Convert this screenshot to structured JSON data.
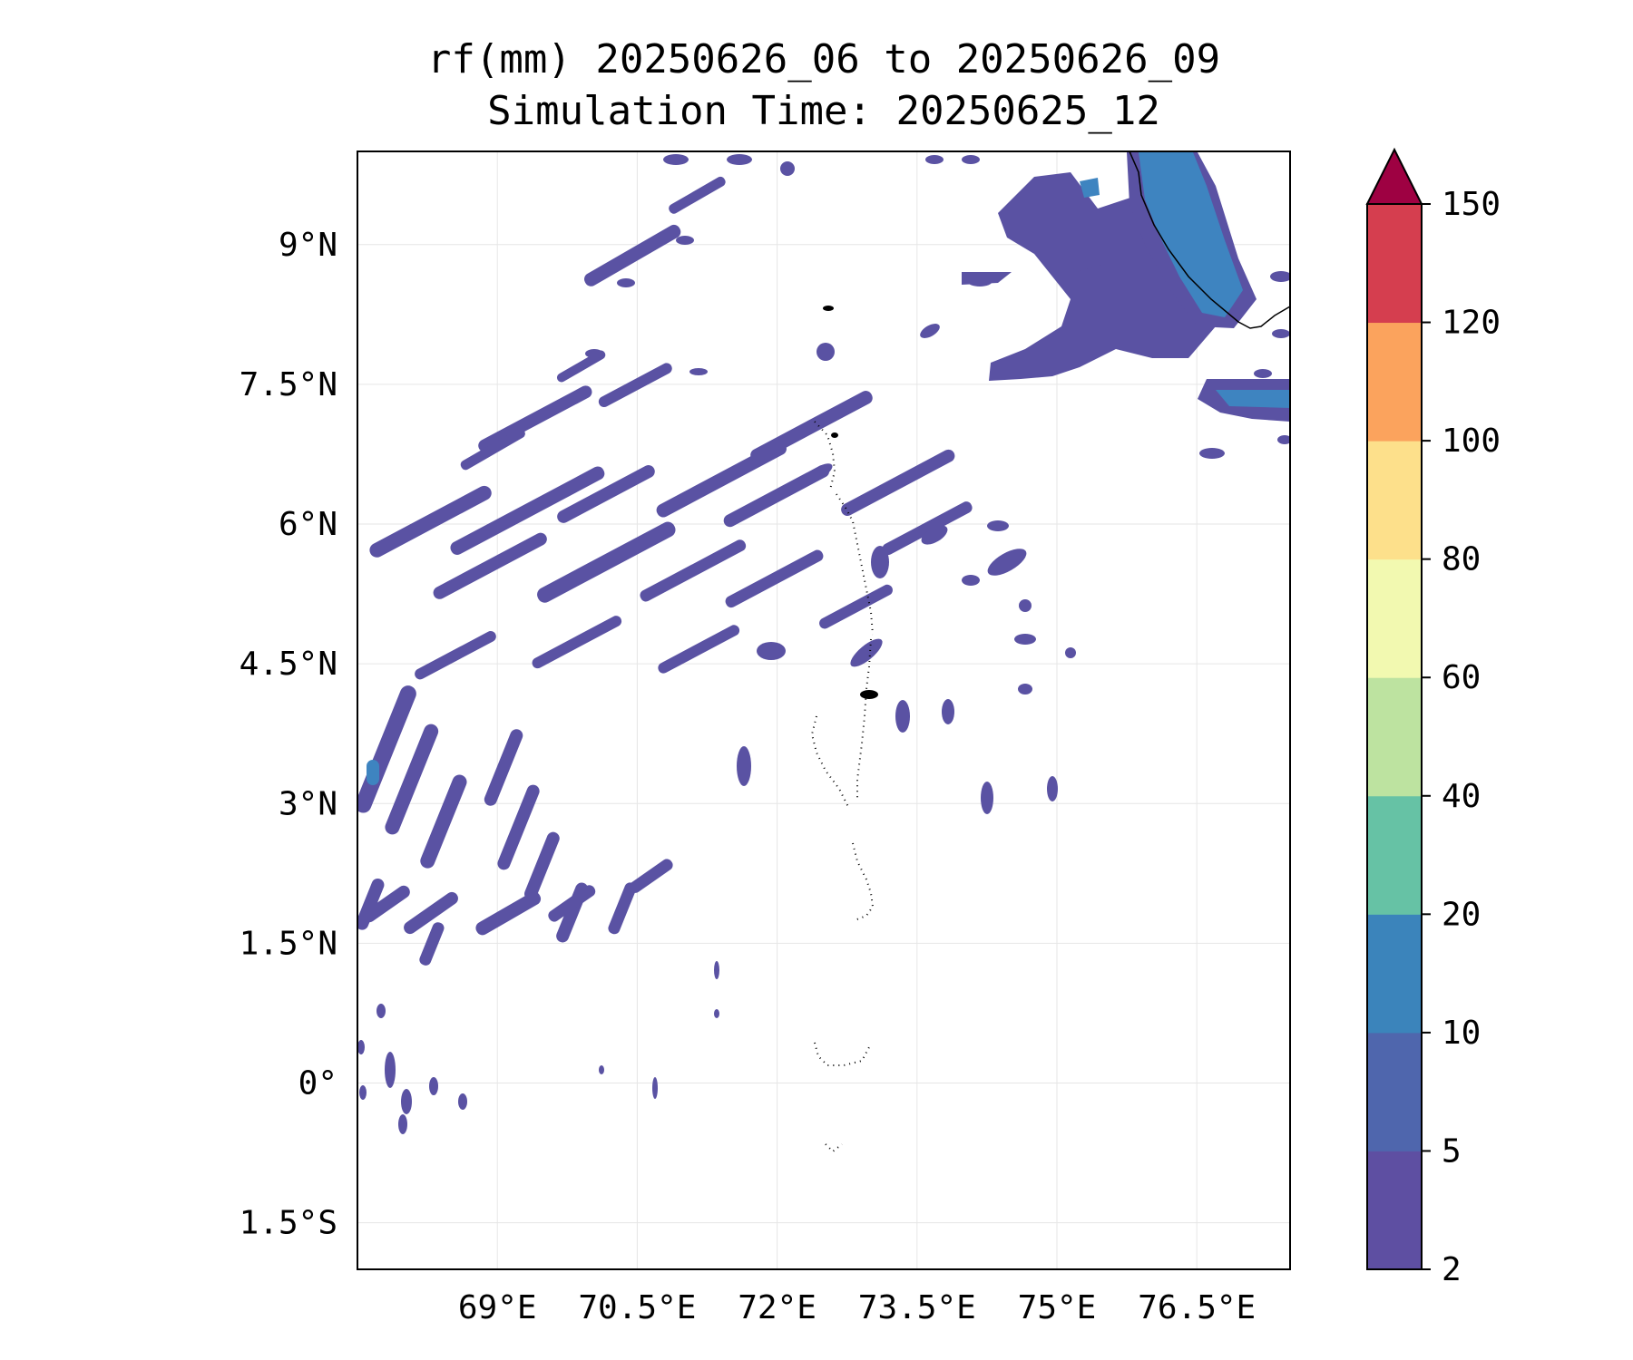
{
  "title": {
    "line1": "rf(mm) 20250626_06 to 20250626_09",
    "line2": "Simulation Time: 20250625_12"
  },
  "map": {
    "lon_range": [
      67.5,
      77.5
    ],
    "lat_range": [
      -2.0,
      10.0
    ],
    "x_ticks": [
      {
        "value": 69.0,
        "label": "69°E"
      },
      {
        "value": 70.5,
        "label": "70.5°E"
      },
      {
        "value": 72.0,
        "label": "72°E"
      },
      {
        "value": 73.5,
        "label": "73.5°E"
      },
      {
        "value": 75.0,
        "label": "75°E"
      },
      {
        "value": 76.5,
        "label": "76.5°E"
      }
    ],
    "y_ticks": [
      {
        "value": 9.0,
        "label": "9°N"
      },
      {
        "value": 7.5,
        "label": "7.5°N"
      },
      {
        "value": 6.0,
        "label": "6°N"
      },
      {
        "value": 4.5,
        "label": "4.5°N"
      },
      {
        "value": 3.0,
        "label": "3°N"
      },
      {
        "value": 1.5,
        "label": "1.5°N"
      },
      {
        "value": 0.0,
        "label": "0°"
      },
      {
        "value": -1.5,
        "label": "1.5°S"
      }
    ],
    "grid": true
  },
  "colorbar": {
    "levels": [
      2,
      5,
      10,
      20,
      40,
      60,
      80,
      100,
      120,
      150
    ],
    "labels": [
      "2",
      "5",
      "10",
      "20",
      "40",
      "60",
      "80",
      "100",
      "120",
      "150"
    ],
    "colors": [
      "#5e4fa2",
      "#4f66ad",
      "#3b84bb",
      "#66c2a5",
      "#bde3a0",
      "#f2f9b0",
      "#fde08b",
      "#fba35d",
      "#d53e4f"
    ],
    "extend_color": "#9e0142",
    "extend": "max"
  }
}
